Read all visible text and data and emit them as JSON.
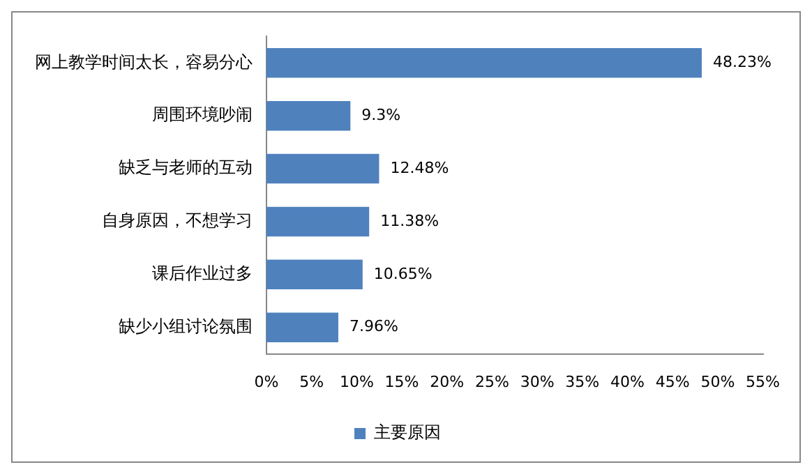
{
  "chart_data": {
    "type": "bar",
    "orientation": "horizontal",
    "categories": [
      "网上教学时间太长，容易分心",
      "周围环境吵闹",
      "缺乏与老师的互动",
      "自身原因，不想学习",
      "课后作业过多",
      "缺少小组讨论氛围"
    ],
    "series": [
      {
        "name": "主要原因",
        "color": "#4f81bd",
        "values": [
          48.23,
          9.3,
          12.48,
          11.38,
          10.65,
          7.96
        ],
        "value_labels": [
          "48.23%",
          "9.3%",
          "12.48%",
          "11.38%",
          "10.65%",
          "7.96%"
        ]
      }
    ],
    "xlim": [
      0,
      55
    ],
    "xticks": [
      {
        "value": 0,
        "label": "0%"
      },
      {
        "value": 5,
        "label": "5%"
      },
      {
        "value": 10,
        "label": "10%"
      },
      {
        "value": 15,
        "label": "15%"
      },
      {
        "value": 20,
        "label": "20%"
      },
      {
        "value": 25,
        "label": "25%"
      },
      {
        "value": 30,
        "label": "30%"
      },
      {
        "value": 35,
        "label": "35%"
      },
      {
        "value": 40,
        "label": "40%"
      },
      {
        "value": 45,
        "label": "45%"
      },
      {
        "value": 50,
        "label": "50%"
      },
      {
        "value": 55,
        "label": "55%"
      }
    ],
    "grid": false,
    "legend": "bottom"
  }
}
